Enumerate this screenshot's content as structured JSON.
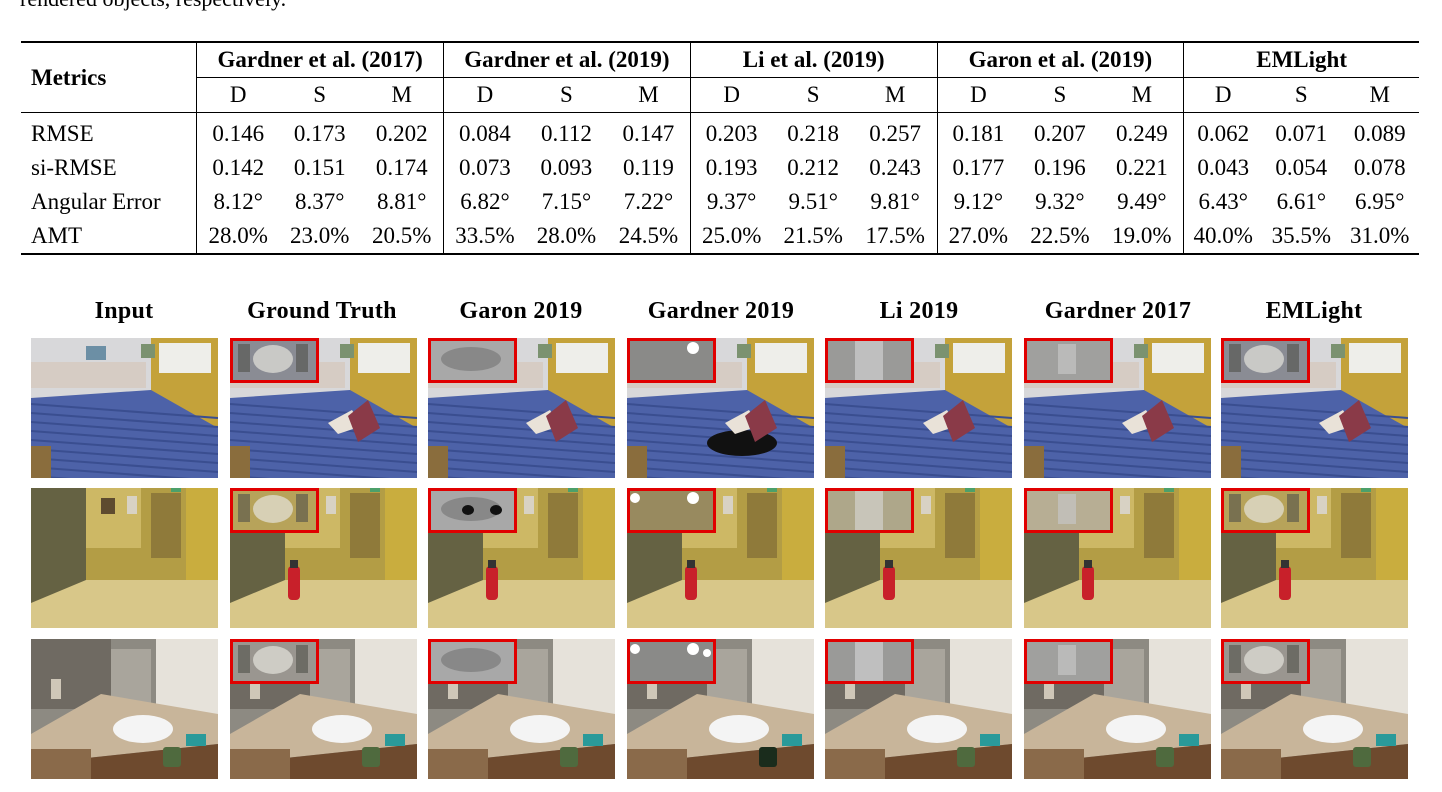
{
  "caption_fragment": "rendered objects, respectively.",
  "table": {
    "metrics_header": "Metrics",
    "methods": [
      "Gardner et al. (2017)",
      "Gardner et al. (2019)",
      "Li et al. (2019)",
      "Garon et al. (2019)",
      "EMLight"
    ],
    "subcols": [
      "D",
      "S",
      "M"
    ],
    "rows": [
      {
        "metric": "RMSE",
        "values": [
          "0.146",
          "0.173",
          "0.202",
          "0.084",
          "0.112",
          "0.147",
          "0.203",
          "0.218",
          "0.257",
          "0.181",
          "0.207",
          "0.249",
          "0.062",
          "0.071",
          "0.089"
        ]
      },
      {
        "metric": "si-RMSE",
        "values": [
          "0.142",
          "0.151",
          "0.174",
          "0.073",
          "0.093",
          "0.119",
          "0.193",
          "0.212",
          "0.243",
          "0.177",
          "0.196",
          "0.221",
          "0.043",
          "0.054",
          "0.078"
        ]
      },
      {
        "metric": "Angular Error",
        "values": [
          "8.12°",
          "8.37°",
          "8.81°",
          "6.82°",
          "7.15°",
          "7.22°",
          "9.37°",
          "9.51°",
          "9.81°",
          "9.12°",
          "9.32°",
          "9.49°",
          "6.43°",
          "6.61°",
          "6.95°"
        ]
      },
      {
        "metric": "AMT",
        "values": [
          "28.0%",
          "23.0%",
          "20.5%",
          "33.5%",
          "28.0%",
          "24.5%",
          "25.0%",
          "21.5%",
          "17.5%",
          "27.0%",
          "22.5%",
          "19.0%",
          "40.0%",
          "35.5%",
          "31.0%"
        ]
      }
    ]
  },
  "figure": {
    "columns": [
      "Input",
      "Ground Truth",
      "Garon 2019",
      "Gardner 2019",
      "Li 2019",
      "Gardner 2017",
      "EMLight"
    ],
    "scenes": [
      "bedroom",
      "hallway",
      "bathroom"
    ],
    "inset_color": "#e00000"
  }
}
